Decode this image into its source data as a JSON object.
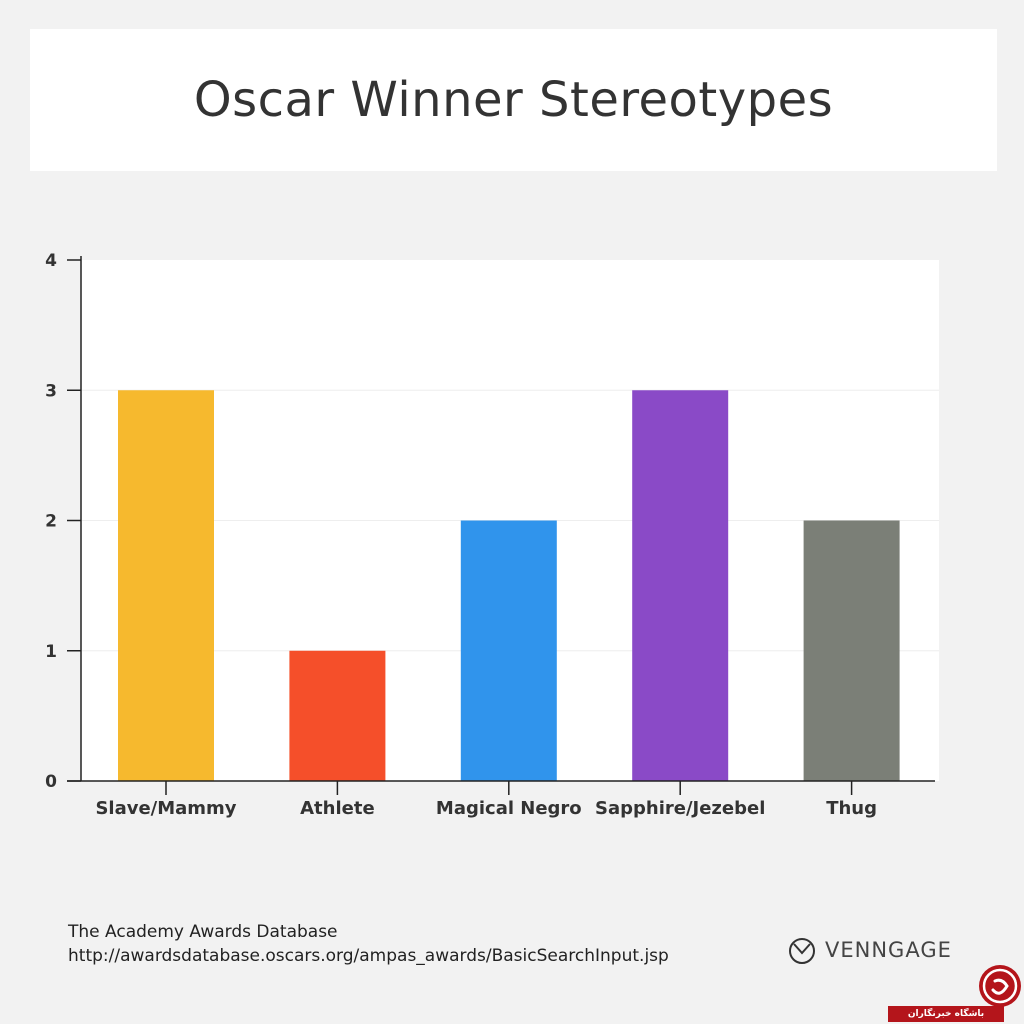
{
  "header": {
    "title": "Oscar Winner Stereotypes"
  },
  "chart_data": {
    "type": "bar",
    "title": "Oscar Winner Stereotypes",
    "xlabel": "",
    "ylabel": "",
    "categories": [
      "Slave/Mammy",
      "Athlete",
      "Magical Negro",
      "Sapphire/Jezebel",
      "Thug"
    ],
    "values": [
      3,
      1,
      2,
      3,
      2
    ],
    "colors": [
      "#f6b92e",
      "#f54f2a",
      "#3094ec",
      "#8a4ac7",
      "#7b7f77"
    ],
    "ylim": [
      0,
      4
    ],
    "yticks": [
      "0",
      "1",
      "2",
      "3",
      "4"
    ],
    "grid": true,
    "legend": "none"
  },
  "footer": {
    "source_name": "The Academy Awards Database",
    "source_url": "http://awardsdatabase.oscars.org/ampas_awards/BasicSearchInput.jsp",
    "brand": "VENNGAGE"
  },
  "watermark": {
    "text": "باشگاه خبرنگاران",
    "color": "#b4151b"
  }
}
